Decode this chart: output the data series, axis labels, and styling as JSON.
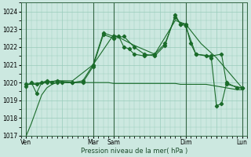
{
  "title": "",
  "xlabel": "Pression niveau de la mer( hPa )",
  "ylabel": "",
  "bg_color": "#cce8e0",
  "grid_color": "#99ccbb",
  "line_color": "#1a6b2a",
  "ylim": [
    1017,
    1024.5
  ],
  "yticks": [
    1017,
    1018,
    1019,
    1020,
    1021,
    1022,
    1023,
    1024
  ],
  "xlim": [
    0,
    22
  ],
  "day_labels": [
    "Ven",
    "",
    "Mar",
    "Sam",
    "",
    "Dim",
    "",
    "Lun"
  ],
  "day_positions": [
    0.5,
    4,
    7,
    9,
    13.5,
    16,
    19,
    21.5
  ],
  "vline_positions": [
    0.5,
    7,
    9,
    16,
    21.5
  ],
  "series1_x": [
    0.5,
    1.0,
    1.5,
    2.0,
    2.5,
    3.0,
    3.5,
    4.0,
    4.5,
    5.0,
    5.5,
    6.0,
    6.5,
    7.0,
    7.5,
    8.0,
    8.5,
    9.0,
    9.5,
    10.0,
    10.5,
    11.0,
    11.5,
    12.0,
    12.5,
    13.0,
    13.5,
    14.0,
    14.5,
    15.0,
    15.5,
    16.0,
    16.5,
    17.0,
    17.5,
    18.0,
    18.5,
    19.0,
    19.5,
    20.0,
    20.5,
    21.0,
    21.5
  ],
  "series1_y": [
    1017.0,
    1017.7,
    1018.5,
    1019.3,
    1019.7,
    1019.9,
    1020.0,
    1020.0,
    1020.0,
    1020.0,
    1020.0,
    1020.0,
    1020.0,
    1020.0,
    1020.0,
    1020.0,
    1020.0,
    1019.95,
    1019.95,
    1019.95,
    1019.95,
    1019.95,
    1019.95,
    1019.95,
    1019.95,
    1019.95,
    1019.95,
    1019.95,
    1019.95,
    1019.95,
    1019.9,
    1019.9,
    1019.9,
    1019.9,
    1019.9,
    1019.9,
    1019.85,
    1019.8,
    1019.75,
    1019.7,
    1019.65,
    1019.6,
    1019.6
  ],
  "series2_x": [
    0.5,
    1.0,
    1.5,
    2.0,
    2.5,
    3.0,
    3.5,
    4.0,
    5.0,
    6.0,
    7.0,
    8.0,
    9.0,
    9.5,
    10.0,
    10.5,
    11.0,
    12.0,
    13.0,
    14.0,
    15.0,
    15.5,
    16.0,
    16.5,
    17.0,
    18.0,
    18.5,
    19.0,
    19.5,
    20.0,
    21.0,
    21.5
  ],
  "series2_y": [
    1019.8,
    1020.0,
    1019.4,
    1020.0,
    1020.1,
    1020.0,
    1020.0,
    1020.0,
    1020.0,
    1020.1,
    1021.0,
    1022.8,
    1022.6,
    1022.6,
    1022.0,
    1021.9,
    1021.6,
    1021.5,
    1021.6,
    1022.2,
    1023.7,
    1023.3,
    1023.3,
    1022.2,
    1021.6,
    1021.5,
    1021.4,
    1018.7,
    1018.8,
    1020.0,
    1019.7,
    1019.7
  ],
  "series3_x": [
    0.5,
    1.5,
    2.5,
    3.5,
    5.0,
    6.0,
    7.0,
    8.0,
    9.0,
    10.0,
    11.0,
    12.0,
    13.0,
    14.0,
    15.0,
    15.5,
    16.0,
    17.0,
    18.5,
    19.5,
    20.0,
    21.5
  ],
  "series3_y": [
    1019.9,
    1019.9,
    1020.0,
    1020.1,
    1020.0,
    1020.0,
    1020.9,
    1022.7,
    1022.5,
    1022.6,
    1022.0,
    1021.6,
    1021.5,
    1022.1,
    1023.8,
    1023.3,
    1023.2,
    1021.6,
    1021.5,
    1021.6,
    1019.9,
    1019.7
  ],
  "series4_x": [
    0.5,
    2.0,
    3.5,
    5.0,
    7.0,
    9.0,
    11.0,
    13.0,
    15.0,
    16.0,
    17.5,
    19.0,
    21.5
  ],
  "series4_y": [
    1019.9,
    1020.0,
    1020.1,
    1020.1,
    1021.0,
    1022.7,
    1022.1,
    1021.6,
    1023.5,
    1023.3,
    1022.2,
    1021.4,
    1019.7
  ]
}
